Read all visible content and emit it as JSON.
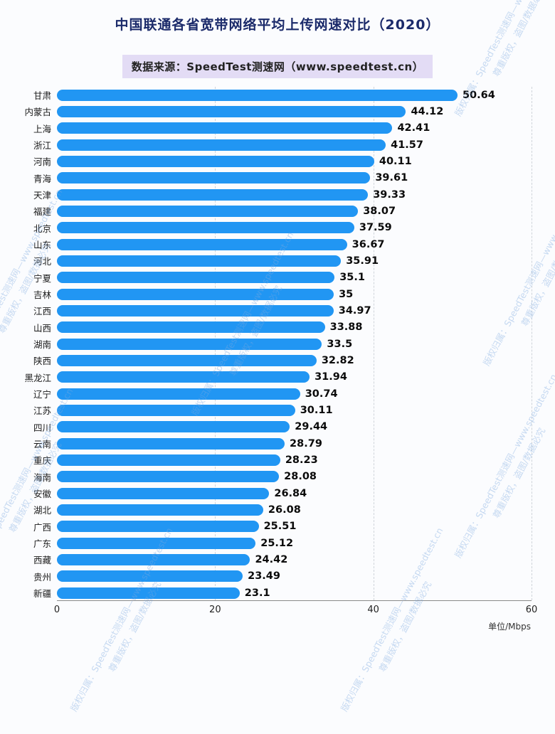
{
  "header": {
    "title": "中国联通各省宽带网络平均上传网速对比（2020）",
    "subtitle": "数据来源：SpeedTest测速网（www.speedtest.cn）"
  },
  "watermark": {
    "line1": "版权归属：SpeedTest测速网—www.speedtest.cn",
    "line2": "尊重版权，盗图/数据必究"
  },
  "chart_data": {
    "type": "bar",
    "orientation": "horizontal",
    "title": "中国联通各省宽带网络平均上传网速对比（2020）",
    "subtitle": "数据来源：SpeedTest测速网（www.speedtest.cn）",
    "unit_label": "单位/Mbps",
    "categories": [
      "甘肃",
      "内蒙古",
      "上海",
      "浙江",
      "河南",
      "青海",
      "天津",
      "福建",
      "北京",
      "山东",
      "河北",
      "宁夏",
      "吉林",
      "江西",
      "山西",
      "湖南",
      "陕西",
      "黑龙江",
      "辽宁",
      "江苏",
      "四川",
      "云南",
      "重庆",
      "海南",
      "安徽",
      "湖北",
      "广西",
      "广东",
      "西藏",
      "贵州",
      "新疆"
    ],
    "values": [
      50.64,
      44.12,
      42.41,
      41.57,
      40.11,
      39.61,
      39.33,
      38.07,
      37.59,
      36.67,
      35.91,
      35.1,
      35,
      34.97,
      33.88,
      33.5,
      32.82,
      31.94,
      30.74,
      30.11,
      29.44,
      28.79,
      28.23,
      28.08,
      26.84,
      26.08,
      25.51,
      25.12,
      24.42,
      23.49,
      23.1
    ],
    "xlim": [
      0,
      60
    ],
    "x_ticks": [
      0,
      20,
      40,
      60
    ],
    "grid": "dashed-vertical",
    "legend": "none",
    "bar_color": "#2196F3",
    "title_color": "#1b2a6a",
    "subtitle_bg_color": "#e3dcf5",
    "value_label_color": "#0b0b0b",
    "watermark_color": "#7daae1"
  }
}
